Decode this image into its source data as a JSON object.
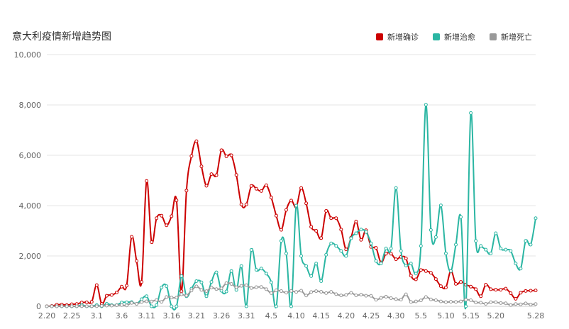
{
  "chart_data": {
    "type": "line",
    "title": "意大利疫情新增趋势图",
    "legend_position": "top-right",
    "grid": true,
    "ylim": [
      0,
      10000
    ],
    "yticks": [
      "0",
      "2,000",
      "4,000",
      "6,000",
      "8,000",
      "10,000"
    ],
    "x": [
      "2.20",
      "2.21",
      "2.22",
      "2.23",
      "2.24",
      "2.25",
      "2.26",
      "2.27",
      "2.28",
      "2.29",
      "3.1",
      "3.2",
      "3.3",
      "3.4",
      "3.5",
      "3.6",
      "3.7",
      "3.8",
      "3.9",
      "3.10",
      "3.11",
      "3.12",
      "3.13",
      "3.14",
      "3.15",
      "3.16",
      "3.17",
      "3.18",
      "3.19",
      "3.20",
      "3.21",
      "3.22",
      "3.23",
      "3.24",
      "3.25",
      "3.26",
      "3.27",
      "3.28",
      "3.29",
      "3.30",
      "3.31",
      "4.1",
      "4.2",
      "4.3",
      "4.4",
      "4.5",
      "4.6",
      "4.7",
      "4.8",
      "4.9",
      "4.10",
      "4.11",
      "4.12",
      "4.13",
      "4.14",
      "4.15",
      "4.16",
      "4.17",
      "4.18",
      "4.19",
      "4.20",
      "4.21",
      "4.22",
      "4.23",
      "4.24",
      "4.25",
      "4.26",
      "4.27",
      "4.28",
      "4.29",
      "4.30",
      "5.1",
      "5.2",
      "5.3",
      "5.4",
      "5.5",
      "5.6",
      "5.7",
      "5.8",
      "5.9",
      "5.10",
      "5.11",
      "5.12",
      "5.13",
      "5.14",
      "5.15",
      "5.16",
      "5.17",
      "5.18",
      "5.19",
      "5.20",
      "5.21",
      "5.22",
      "5.23",
      "5.24",
      "5.25",
      "5.26",
      "5.27",
      "5.28"
    ],
    "xtick_labels": [
      "2.20",
      "2.25",
      "3.1",
      "3.6",
      "3.11",
      "3.16",
      "3.21",
      "3.26",
      "3.31",
      "4.5",
      "4.10",
      "4.15",
      "4.20",
      "4.25",
      "4.30",
      "5.5",
      "5.10",
      "5.15",
      "5.20",
      "5.28"
    ],
    "series": [
      {
        "name": "新增确诊",
        "color": "#cc0000",
        "values": [
          3,
          14,
          62,
          70,
          50,
          80,
          90,
          150,
          160,
          180,
          840,
          100,
          420,
          450,
          550,
          780,
          820,
          2760,
          1800,
          970,
          4980,
          2550,
          3500,
          3600,
          3220,
          3580,
          4210,
          600,
          4600,
          5970,
          6560,
          5560,
          4790,
          5250,
          5210,
          6200,
          5960,
          6000,
          5220,
          4050,
          4050,
          4780,
          4670,
          4580,
          4810,
          4320,
          3600,
          3040,
          3830,
          4200,
          3950,
          4700,
          4090,
          3160,
          3000,
          2710,
          3790,
          3500,
          3500,
          3050,
          2260,
          2730,
          3370,
          2640,
          3020,
          2360,
          2320,
          1740,
          2090,
          2090,
          1870,
          1965,
          1900,
          1220,
          1070,
          1440,
          1400,
          1330,
          1080,
          800,
          750,
          1400,
          890,
          970,
          860,
          780,
          680,
          400,
          860,
          680,
          660,
          660,
          700,
          520,
          300,
          540,
          610,
          620,
          630
        ]
      },
      {
        "name": "新增治愈",
        "color": "#2bb6a3",
        "values": [
          0,
          0,
          0,
          0,
          0,
          0,
          0,
          50,
          0,
          0,
          50,
          0,
          100,
          50,
          50,
          150,
          160,
          170,
          100,
          280,
          400,
          0,
          50,
          750,
          800,
          0,
          0,
          1200,
          400,
          700,
          1000,
          950,
          400,
          970,
          1350,
          620,
          590,
          1400,
          650,
          1600,
          0,
          2240,
          1450,
          1500,
          1300,
          950,
          0,
          2600,
          2100,
          0,
          4000,
          2000,
          1600,
          1200,
          1700,
          1000,
          2050,
          2500,
          2400,
          2200,
          2000,
          2700,
          2900,
          3050,
          2950,
          2500,
          1800,
          1700,
          2300,
          2300,
          4700,
          2200,
          1620,
          1700,
          1300,
          2400,
          8010,
          3030,
          2750,
          4010,
          2100,
          1400,
          2450,
          3550,
          0,
          7680,
          2600,
          2400,
          2250,
          2100,
          2900,
          2300,
          2250,
          2200,
          1700,
          1500,
          2600,
          2450,
          3500
        ]
      },
      {
        "name": "新增死亡",
        "color": "#999999",
        "values": [
          1,
          1,
          1,
          3,
          4,
          2,
          4,
          5,
          5,
          5,
          5,
          18,
          27,
          28,
          41,
          49,
          36,
          133,
          97,
          168,
          196,
          189,
          250,
          175,
          368,
          349,
          345,
          475,
          427,
          627,
          793,
          651,
          601,
          743,
          683,
          712,
          919,
          889,
          756,
          812,
          837,
          727,
          760,
          766,
          681,
          525,
          636,
          604,
          542,
          610,
          570,
          619,
          431,
          566,
          602,
          578,
          525,
          575,
          482,
          433,
          454,
          534,
          437,
          464,
          420,
          415,
          260,
          333,
          382,
          323,
          285,
          269,
          474,
          174,
          195,
          236,
          369,
          274,
          243,
          194,
          165,
          179,
          172,
          195,
          262,
          242,
          153,
          145,
          99,
          162,
          161,
          130,
          119,
          50,
          92,
          78,
          117,
          70,
          90
        ]
      }
    ]
  }
}
